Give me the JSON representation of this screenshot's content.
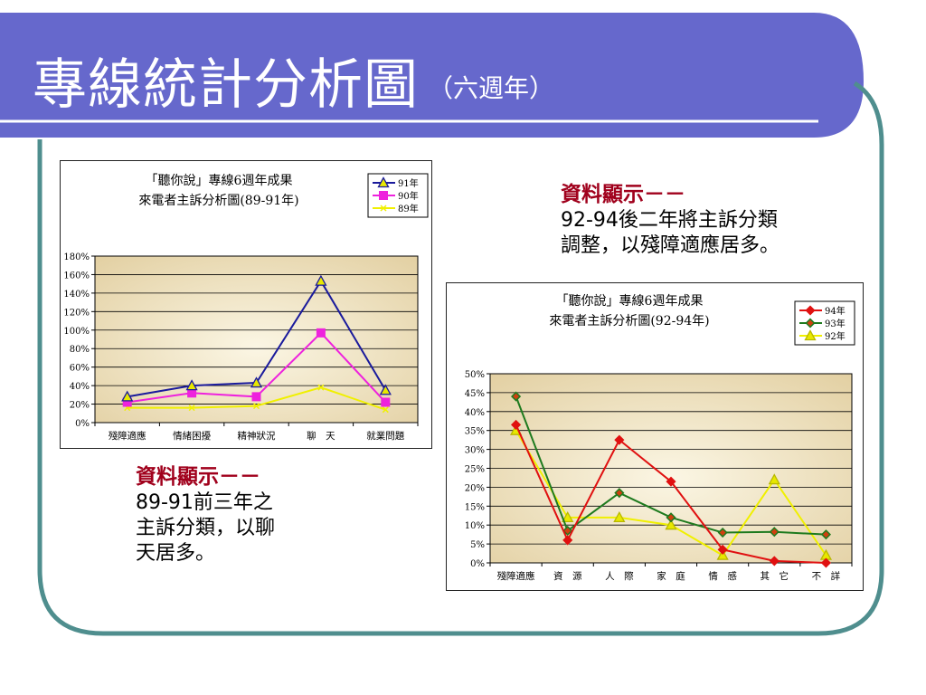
{
  "slide": {
    "title": "專線統計分析圖",
    "subtitle": "（六週年）",
    "colors": {
      "banner": "#6668cc",
      "frame": "#4f8e8e"
    }
  },
  "notes": [
    {
      "head": "資料顯示－－",
      "lines": [
        "92-94後二年將主訴分類",
        "調整，以殘障適應居多。"
      ]
    },
    {
      "head": "資料顯示－－",
      "lines": [
        "89-91前三年之",
        "主訴分類，以聊",
        "天居多。"
      ]
    }
  ],
  "chart_data": [
    {
      "type": "line",
      "title": [
        "「聽你說」專線6週年成果",
        "來電者主訴分析圖(89-91年)"
      ],
      "categories": [
        "殘障適應",
        "情緒困擾",
        "精神狀況",
        "聊　天",
        "就業問題"
      ],
      "ylim": [
        0,
        180
      ],
      "yticks": [
        0,
        20,
        40,
        60,
        80,
        100,
        120,
        140,
        160,
        180
      ],
      "y_unit": "%",
      "grid": true,
      "legend_position": "top-right",
      "series": [
        {
          "name": "91年",
          "color": "#1a1a9c",
          "marker": "triangle",
          "values": [
            28,
            40,
            43,
            153,
            35
          ]
        },
        {
          "name": "90年",
          "color": "#ee22dd",
          "marker": "square",
          "values": [
            22,
            32,
            28,
            97,
            22
          ]
        },
        {
          "name": "89年",
          "color": "#f0f000",
          "marker": "x",
          "values": [
            16,
            16,
            18,
            38,
            14
          ]
        }
      ]
    },
    {
      "type": "line",
      "title": [
        "「聽你說」專線6週年成果",
        "來電者主訴分析圖(92-94年)"
      ],
      "categories": [
        "殘障適應",
        "資　源",
        "人　際",
        "家　庭",
        "情　感",
        "其　它",
        "不　詳"
      ],
      "ylim": [
        0,
        50
      ],
      "yticks": [
        0,
        5,
        10,
        15,
        20,
        25,
        30,
        35,
        40,
        45,
        50
      ],
      "y_unit": "%",
      "grid": true,
      "legend_position": "top-right",
      "series": [
        {
          "name": "94年",
          "color": "#e01010",
          "marker": "diamond",
          "values": [
            36.5,
            6,
            32.5,
            21.5,
            3.5,
            0.5,
            0
          ]
        },
        {
          "name": "93年",
          "color": "#1e7a1e",
          "marker": "diamond",
          "values": [
            44,
            8.5,
            18.5,
            12,
            8,
            8.2,
            7.5
          ]
        },
        {
          "name": "92年",
          "color": "#f0f000",
          "marker": "triangle",
          "values": [
            35,
            12,
            12,
            10,
            2,
            22,
            2
          ]
        }
      ]
    }
  ]
}
